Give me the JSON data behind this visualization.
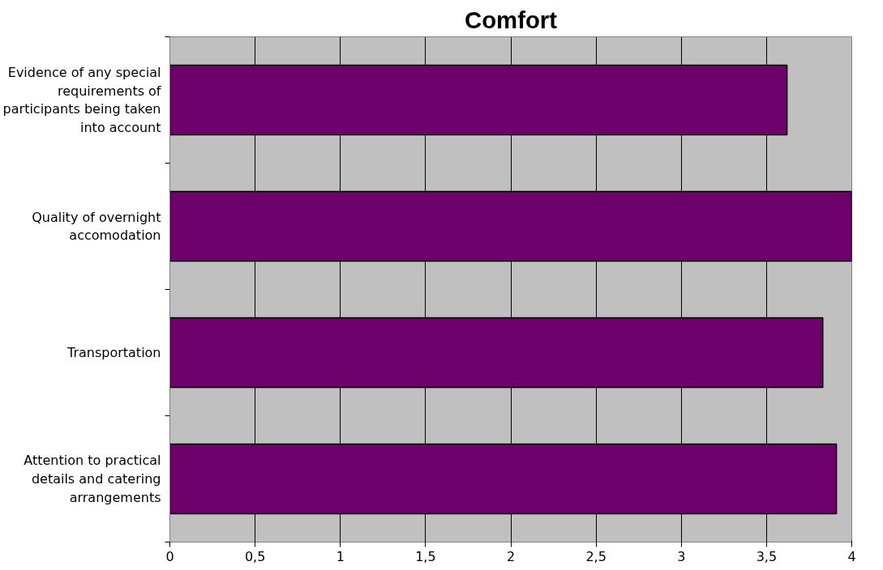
{
  "chart_data": {
    "type": "bar",
    "orientation": "horizontal",
    "title": "Comfort",
    "categories": [
      "Evidence of any special requirements of participants being taken into account",
      "Quality of overnight accomodation",
      "Transportation",
      "Attention to practical details and catering arrangements"
    ],
    "values": [
      3.62,
      4.0,
      3.83,
      3.91
    ],
    "color": "#6e006c",
    "xlim": [
      0,
      4
    ],
    "xticks": [
      0,
      {
        "value": 0.5,
        "label": "0,5"
      },
      1,
      {
        "value": 1.5,
        "label": "1,5"
      },
      2,
      {
        "value": 2.5,
        "label": "2,5"
      },
      3,
      {
        "value": 3.5,
        "label": "3,5"
      },
      4
    ],
    "grid": "x"
  }
}
